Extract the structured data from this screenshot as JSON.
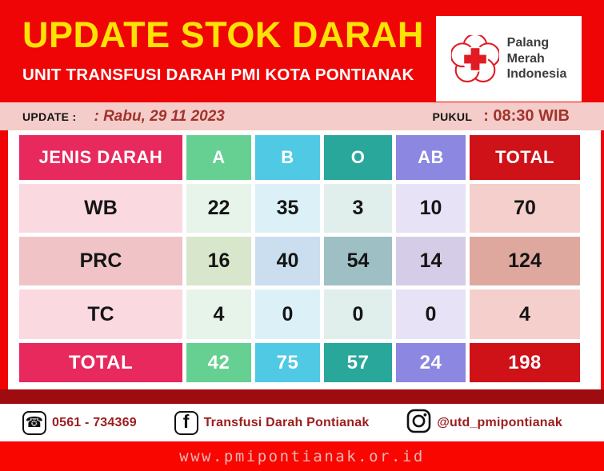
{
  "header": {
    "title": "UPDATE STOK DARAH",
    "subtitle": "UNIT TRANSFUSI DARAH PMI KOTA PONTIANAK",
    "logo_lines": [
      "Palang",
      "Merah",
      "Indonesia"
    ]
  },
  "update_bar": {
    "update_label": "UPDATE :",
    "update_value": ": Rabu, 29 11 2023",
    "time_label": "PUKUL",
    "time_value": ": 08:30 WIB"
  },
  "chart_data": {
    "type": "table",
    "title": "UPDATE STOK DARAH",
    "columns": [
      "JENIS DARAH",
      "A",
      "B",
      "O",
      "AB",
      "TOTAL"
    ],
    "rows": [
      {
        "label": "WB",
        "values": [
          22,
          35,
          3,
          10,
          70
        ]
      },
      {
        "label": "PRC",
        "values": [
          16,
          40,
          54,
          14,
          124
        ]
      },
      {
        "label": "TC",
        "values": [
          4,
          0,
          0,
          0,
          4
        ]
      }
    ],
    "total_row": {
      "label": "TOTAL",
      "values": [
        42,
        75,
        57,
        24,
        198
      ]
    }
  },
  "footer": {
    "phone": "0561 - 734369",
    "facebook": "Transfusi Darah Pontianak",
    "instagram": "@utd_pmipontianak"
  },
  "bottom_bar": {
    "website": "www.pmipontianak.or.id"
  },
  "colors": {
    "header_red": "#EF0505",
    "title_yellow": "#FFE205",
    "update_bar_pink": "#F4CCC9",
    "dark_red_text": "#A3332D",
    "col_jenis": "#E8295E",
    "col_a": "#66D092",
    "col_b": "#4FC9E4",
    "col_o": "#2AA79B",
    "col_ab": "#8C87E0",
    "col_total": "#CF1118",
    "maroon_bar": "#9E0C10",
    "bottom_bar_red": "#F90600"
  }
}
